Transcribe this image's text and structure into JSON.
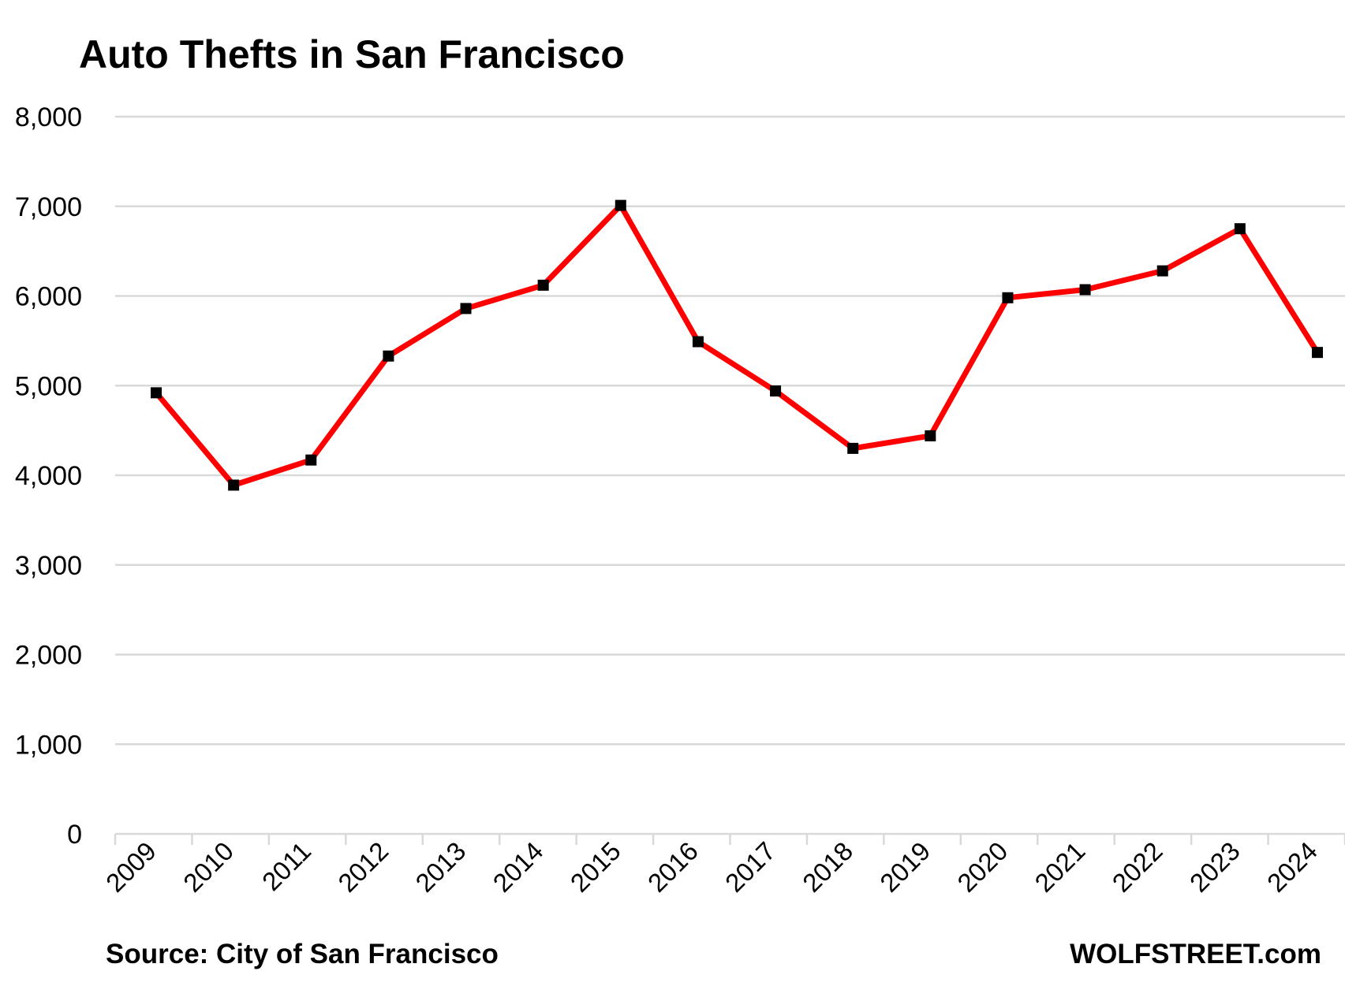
{
  "chart_data": {
    "type": "line",
    "title": "Auto Thefts in San Francisco",
    "xlabel": "",
    "ylabel": "",
    "ylim": [
      0,
      8000
    ],
    "yticks": [
      0,
      1000,
      2000,
      3000,
      4000,
      5000,
      6000,
      7000,
      8000
    ],
    "ytick_labels": [
      "0",
      "1,000",
      "2,000",
      "3,000",
      "4,000",
      "5,000",
      "6,000",
      "7,000",
      "8,000"
    ],
    "grid": true,
    "legend": "none",
    "categories": [
      "2009",
      "2010",
      "2011",
      "2012",
      "2013",
      "2014",
      "2015",
      "2016",
      "2017",
      "2018",
      "2019",
      "2020",
      "2021",
      "2022",
      "2023",
      "2024"
    ],
    "series": [
      {
        "values": [
          4920,
          3890,
          4170,
          5330,
          5860,
          6120,
          7010,
          5490,
          4940,
          4300,
          4440,
          5980,
          6070,
          6280,
          6750,
          5370
        ],
        "color": "#ff0000",
        "marker_color": "#000000"
      }
    ],
    "source": "Source: City of San Francisco",
    "credit": "WOLFSTREET.com"
  }
}
